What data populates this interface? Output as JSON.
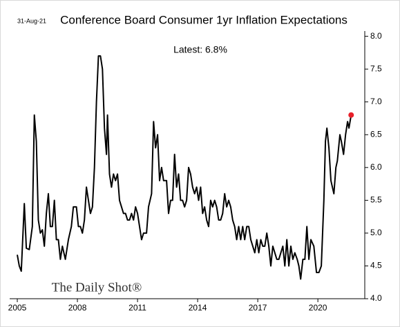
{
  "chart_data": {
    "type": "line",
    "title": "Conference Board Consumer 1yr Inflation Expectations",
    "date": "31-Aug-21",
    "annotation": "Latest:  6.8%",
    "watermark": "The Daily Shot®",
    "series": [
      {
        "color": "#000000",
        "x": [
          2005.0,
          2005.1,
          2005.2,
          2005.35,
          2005.45,
          2005.6,
          2005.75,
          2005.85,
          2005.95,
          2006.05,
          2006.15,
          2006.25,
          2006.35,
          2006.45,
          2006.55,
          2006.65,
          2006.75,
          2006.85,
          2006.95,
          2007.05,
          2007.15,
          2007.25,
          2007.4,
          2007.55,
          2007.7,
          2007.8,
          2007.95,
          2008.05,
          2008.15,
          2008.25,
          2008.35,
          2008.45,
          2008.55,
          2008.65,
          2008.75,
          2008.85,
          2008.95,
          2009.05,
          2009.15,
          2009.25,
          2009.35,
          2009.45,
          2009.5,
          2009.6,
          2009.7,
          2009.8,
          2009.9,
          2010.0,
          2010.1,
          2010.2,
          2010.3,
          2010.4,
          2010.5,
          2010.6,
          2010.7,
          2010.8,
          2010.9,
          2011.0,
          2011.1,
          2011.2,
          2011.3,
          2011.45,
          2011.55,
          2011.7,
          2011.8,
          2011.9,
          2012.0,
          2012.1,
          2012.2,
          2012.3,
          2012.45,
          2012.55,
          2012.65,
          2012.75,
          2012.85,
          2012.95,
          2013.05,
          2013.15,
          2013.25,
          2013.35,
          2013.45,
          2013.55,
          2013.65,
          2013.75,
          2013.85,
          2013.95,
          2014.05,
          2014.15,
          2014.25,
          2014.35,
          2014.45,
          2014.55,
          2014.65,
          2014.75,
          2014.85,
          2014.95,
          2015.05,
          2015.15,
          2015.25,
          2015.35,
          2015.45,
          2015.55,
          2015.65,
          2015.75,
          2015.85,
          2015.95,
          2016.05,
          2016.15,
          2016.25,
          2016.35,
          2016.45,
          2016.55,
          2016.65,
          2016.75,
          2016.85,
          2016.95,
          2017.05,
          2017.15,
          2017.25,
          2017.35,
          2017.45,
          2017.55,
          2017.65,
          2017.75,
          2017.85,
          2017.95,
          2018.05,
          2018.15,
          2018.25,
          2018.35,
          2018.45,
          2018.55,
          2018.65,
          2018.75,
          2018.85,
          2018.97,
          2019.05,
          2019.14,
          2019.25,
          2019.35,
          2019.45,
          2019.55,
          2019.65,
          2019.8,
          2019.93,
          2020.05,
          2020.17,
          2020.3,
          2020.38,
          2020.45,
          2020.55,
          2020.65,
          2020.8,
          2020.9,
          2020.97,
          2021.1,
          2021.17,
          2021.28,
          2021.38,
          2021.48,
          2021.55,
          2021.66
        ],
        "values": [
          4.67,
          4.5,
          4.42,
          5.45,
          4.77,
          4.75,
          5.1,
          6.8,
          6.4,
          5.2,
          5.0,
          5.05,
          4.8,
          5.3,
          5.6,
          5.1,
          5.1,
          5.5,
          4.9,
          4.9,
          4.6,
          4.8,
          4.6,
          4.9,
          5.1,
          5.4,
          5.4,
          5.1,
          5.1,
          5.0,
          5.2,
          5.7,
          5.5,
          5.3,
          5.4,
          6.0,
          7.0,
          7.7,
          7.7,
          7.5,
          6.6,
          6.2,
          6.8,
          5.9,
          5.7,
          5.9,
          5.8,
          5.9,
          5.5,
          5.4,
          5.3,
          5.3,
          5.2,
          5.2,
          5.3,
          5.2,
          5.4,
          5.3,
          5.1,
          4.9,
          5.0,
          5.0,
          5.4,
          5.6,
          6.7,
          6.3,
          6.5,
          5.8,
          6.0,
          5.8,
          5.8,
          5.3,
          5.5,
          5.5,
          6.2,
          5.7,
          5.9,
          5.5,
          5.5,
          5.4,
          5.5,
          6.0,
          5.9,
          5.7,
          5.6,
          5.7,
          5.5,
          5.7,
          5.3,
          5.4,
          5.2,
          5.1,
          5.5,
          5.4,
          5.5,
          5.4,
          5.2,
          5.2,
          5.3,
          5.6,
          5.4,
          5.5,
          5.4,
          5.2,
          5.1,
          4.9,
          5.1,
          4.9,
          5.1,
          4.9,
          5.1,
          5.1,
          4.9,
          4.8,
          4.7,
          4.9,
          4.7,
          4.9,
          4.8,
          4.8,
          5.0,
          4.8,
          4.5,
          4.8,
          4.7,
          4.6,
          4.6,
          4.7,
          4.8,
          4.5,
          4.9,
          4.5,
          4.8,
          4.6,
          4.7,
          4.6,
          4.5,
          4.3,
          4.6,
          4.6,
          5.1,
          4.6,
          4.9,
          4.8,
          4.4,
          4.4,
          4.5,
          5.5,
          6.4,
          6.6,
          6.3,
          5.8,
          5.6,
          6.0,
          6.1,
          6.5,
          6.4,
          6.2,
          6.5,
          6.7,
          6.6,
          6.8
        ]
      }
    ],
    "highlight_color": "#e8202a",
    "xlim": [
      2004.62,
      2022.34
    ],
    "xticks": [
      2005,
      2008,
      2011,
      2014,
      2017,
      2020
    ],
    "ylim": [
      4.0,
      8.08
    ],
    "yticks": [
      {
        "value": 4,
        "label": "4.0"
      },
      4.5,
      {
        "value": 5,
        "label": "5.0"
      },
      5.5,
      {
        "value": 6,
        "label": "6.0"
      },
      6.5,
      {
        "value": 7,
        "label": "7.0"
      },
      7.5,
      {
        "value": 8,
        "label": "8.0"
      }
    ]
  }
}
